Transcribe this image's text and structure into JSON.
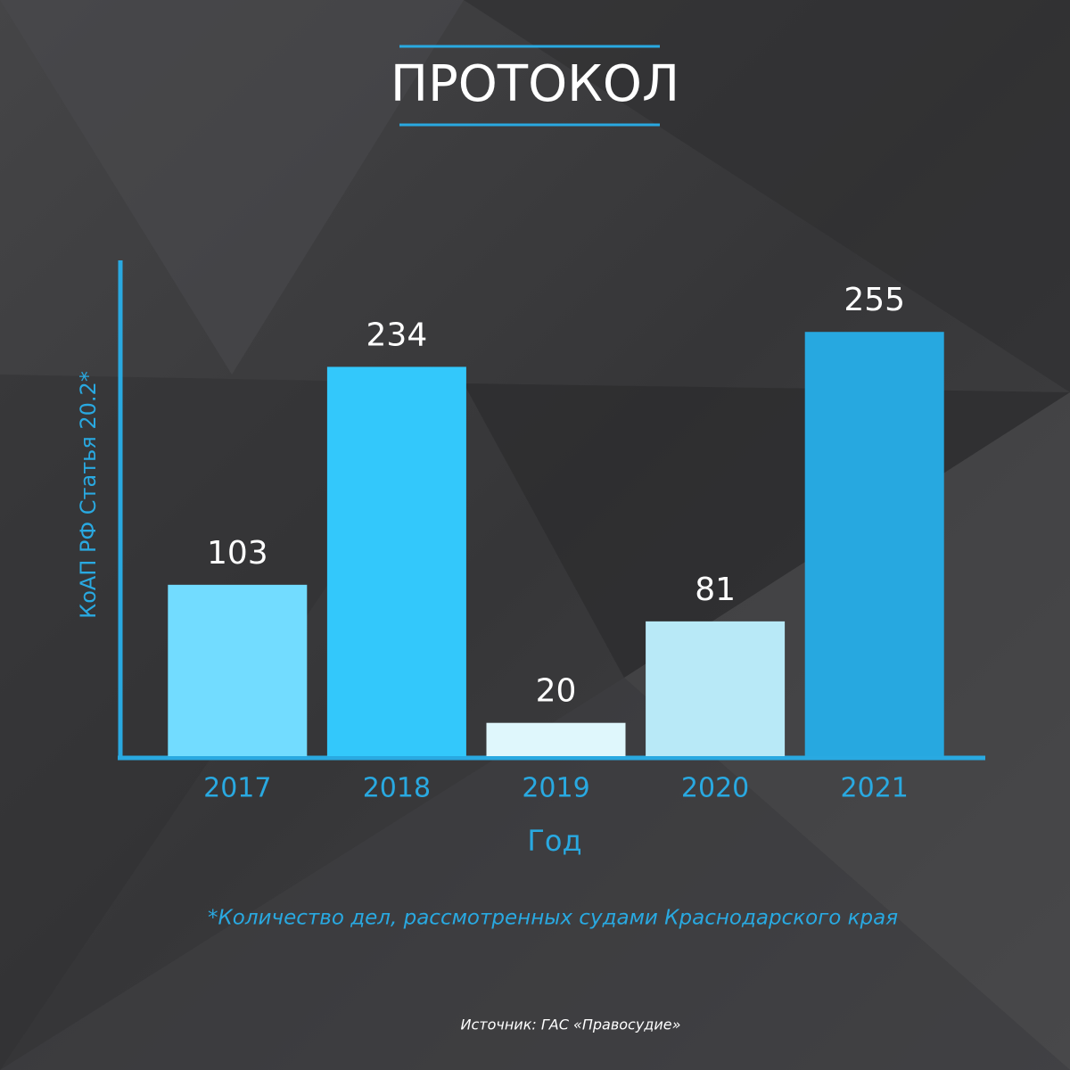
{
  "chart_data": {
    "type": "bar",
    "title": "ПРОТОКОЛ",
    "y_label": "КоАП РФ Статья 20.2*",
    "x_label": "Год",
    "note": "*Количество дел, рассмотренных судами Краснодарского края",
    "source": "Источник: ГАС «Правосудие»",
    "categories": [
      "2017",
      "2018",
      "2019",
      "2020",
      "2021"
    ],
    "values": [
      103,
      234,
      20,
      81,
      255
    ],
    "colors": [
      "#72dcff",
      "#33c8fb",
      "#dff7fc",
      "#b8e9f7",
      "#27a8e0"
    ],
    "ylim": [
      0,
      298
    ]
  }
}
